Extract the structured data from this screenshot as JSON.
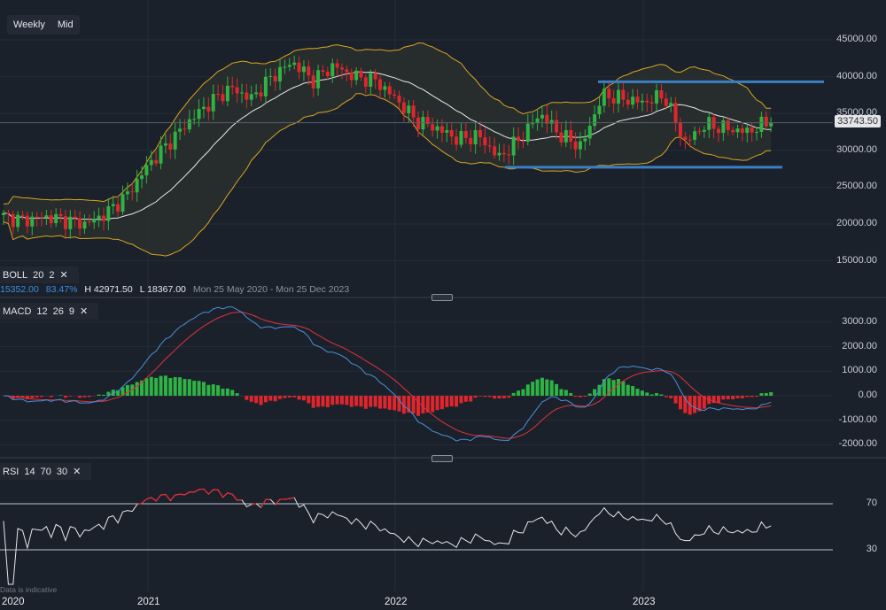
{
  "timeframe": {
    "options": [
      "Weekly",
      "Mid"
    ]
  },
  "indicators": {
    "boll": {
      "name": "BOLL",
      "p1": "20",
      "p2": "2",
      "close": "✕"
    },
    "macd": {
      "name": "MACD",
      "p1": "12",
      "p2": "26",
      "p3": "9",
      "close": "✕"
    },
    "rsi": {
      "name": "RSI",
      "p1": "14",
      "p2": "70",
      "p3": "30",
      "close": "✕"
    }
  },
  "info_bar": {
    "value1": "15352.00",
    "percent": "83.47%",
    "high": "H 42971.50",
    "low": "L 18367.00",
    "range": "Mon 25 May 2020 - Mon 25 Dec 2023"
  },
  "last_price": "33743.50",
  "disclaimer": "Data is indicative",
  "colors": {
    "up": "#2fb344",
    "down": "#e0262d",
    "band": "#d9a521",
    "mid": "#e8e8e8",
    "macd": "#4a90d9",
    "signal": "#e0323a",
    "level": "#3a7fc4"
  },
  "chart_data": {
    "type": "candlestick",
    "title": "",
    "x_labels": [
      "2020",
      "2021",
      "2022",
      "2023"
    ],
    "price_axis": {
      "ticks": [
        "45000.00",
        "40000.00",
        "35000.00",
        "30000.00",
        "25000.00",
        "20000.00",
        "15000.00"
      ],
      "range": [
        11000,
        48500
      ]
    },
    "macd_axis": {
      "ticks": [
        "3000.00",
        "2000.00",
        "1000.00",
        "0.00",
        "-1000.00",
        "-2000.00"
      ],
      "range": [
        -2700,
        3900
      ]
    },
    "rsi_axis": {
      "ticks": [
        "70",
        "30"
      ],
      "range": [
        0,
        100
      ]
    },
    "monthly_closes_from_jun_2020": [
      21000,
      20500,
      21000,
      20500,
      20000,
      21500,
      24000,
      28000,
      31000,
      34000,
      36500,
      38500,
      37000,
      40000,
      42000,
      39500,
      41500,
      40000,
      39500,
      37000,
      34000,
      33000,
      31500,
      32000,
      29000,
      31500,
      35000,
      32000,
      30500,
      37500,
      37000,
      36500,
      37500,
      31000,
      33500,
      33000,
      32500,
      33743.5
    ],
    "levels": [
      {
        "name": "resistance",
        "value": 39300
      },
      {
        "name": "support",
        "value": 27700
      }
    ]
  }
}
